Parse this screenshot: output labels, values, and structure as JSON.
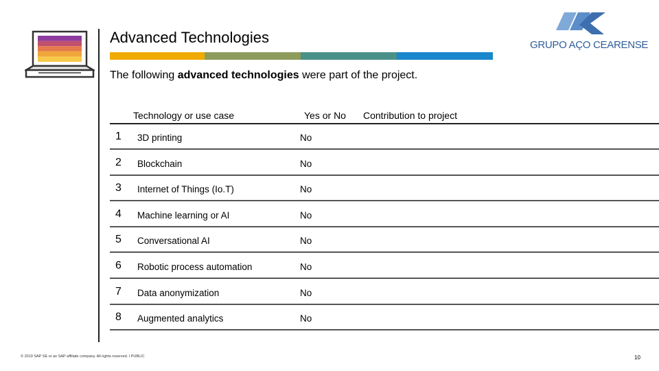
{
  "header": {
    "title": "Advanced Technologies",
    "subtitle_pre": "The following ",
    "subtitle_bold": "advanced technologies",
    "subtitle_post": " were part of the project.",
    "color_bar": [
      "#f0ab00",
      "#8d9c5b",
      "#4a9189",
      "#1b87cc"
    ]
  },
  "logo": {
    "text": "GRUPO AÇO CEARENSE",
    "color": "#2e5e9a",
    "icon": "aco-cearense-logo-icon"
  },
  "laptop": {
    "icon": "laptop-icon",
    "screen_colors": [
      "#8e3ca0",
      "#c0506e",
      "#e57a4a",
      "#f0a63a",
      "#f7c94a"
    ]
  },
  "table": {
    "headers": {
      "tech": "Technology or use case",
      "yn": "Yes or No",
      "contrib": "Contribution to project"
    },
    "rows": [
      {
        "num": "1",
        "tech": "3D printing",
        "yn": "No",
        "contrib": ""
      },
      {
        "num": "2",
        "tech": "Blockchain",
        "yn": "No",
        "contrib": ""
      },
      {
        "num": "3",
        "tech": "Internet of Things (Io.T)",
        "yn": "No",
        "contrib": ""
      },
      {
        "num": "4",
        "tech": "Machine learning or AI",
        "yn": "No",
        "contrib": ""
      },
      {
        "num": "5",
        "tech": "Conversational AI",
        "yn": "No",
        "contrib": ""
      },
      {
        "num": "6",
        "tech": "Robotic process automation",
        "yn": "No",
        "contrib": ""
      },
      {
        "num": "7",
        "tech": "Data anonymization",
        "yn": "No",
        "contrib": ""
      },
      {
        "num": "8",
        "tech": "Augmented analytics",
        "yn": "No",
        "contrib": ""
      }
    ]
  },
  "footer": {
    "text": "© 2019 SAP SE or an SAP affiliate company. All rights reserved. ǀ PUBLIC",
    "page": "10"
  }
}
